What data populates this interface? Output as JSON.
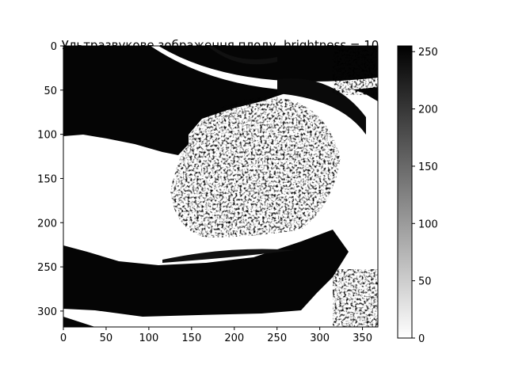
{
  "figure": {
    "title": "Ультразвукове зображення плоду, brightness = 10",
    "image_kind": "grayscale ultrasound scan (binarized/high-contrast)",
    "cmap": "gray_r"
  },
  "x_axis": {
    "range": [
      0,
      368
    ],
    "ticks": [
      0,
      50,
      100,
      150,
      200,
      250,
      300,
      350
    ]
  },
  "y_axis": {
    "range": [
      0,
      318
    ],
    "inverted": true,
    "ticks": [
      0,
      50,
      100,
      150,
      200,
      250,
      300
    ]
  },
  "colorbar": {
    "range": [
      0,
      255
    ],
    "ticks": [
      0,
      50,
      100,
      150,
      200,
      250
    ],
    "low_color": "#ffffff",
    "high_color": "#000000"
  }
}
